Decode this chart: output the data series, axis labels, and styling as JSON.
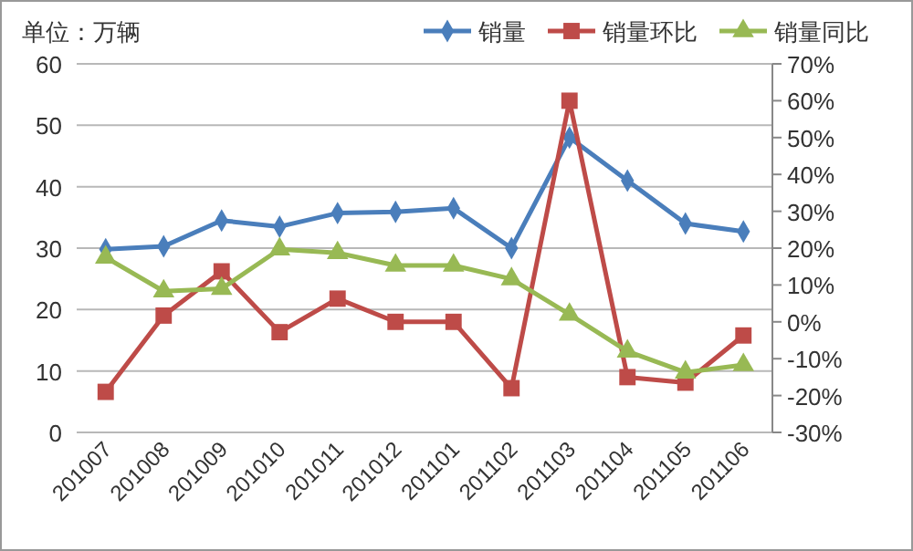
{
  "chart_data": {
    "type": "line",
    "ylabel": "单位：万辆",
    "categories": [
      "201007",
      "201008",
      "201009",
      "201010",
      "201011",
      "201012",
      "201101",
      "201102",
      "201103",
      "201104",
      "201105",
      "201106"
    ],
    "series": [
      {
        "name": "销量",
        "color": "#4a7ebb",
        "marker": "diamond",
        "values": [
          29.8,
          30.3,
          34.5,
          33.5,
          35.7,
          35.9,
          36.5,
          30,
          48,
          41,
          34,
          32.7
        ]
      },
      {
        "name": "销量环比",
        "color": "#be4b48",
        "marker": "square",
        "axis": "y2",
        "values": [
          -19,
          1.7,
          13.7,
          -2.8,
          6.3,
          0,
          0,
          -18,
          60,
          -15,
          -16.5,
          -3.7
        ]
      },
      {
        "name": "销量同比",
        "color": "#98b954",
        "marker": "triangle",
        "axis": "y2",
        "values": [
          17.5,
          8.3,
          9,
          19.7,
          18.7,
          15.3,
          15.3,
          11.6,
          2,
          -8,
          -13.7,
          -11.7
        ]
      }
    ],
    "ylim": [
      0,
      60
    ],
    "yticks": [
      0,
      10,
      20,
      30,
      40,
      50,
      60
    ],
    "y2lim": [
      -30,
      70
    ],
    "y2ticks": [
      {
        "value": -30,
        "label": "-30%"
      },
      {
        "value": -20,
        "label": "-20%"
      },
      {
        "value": -10,
        "label": "-10%"
      },
      {
        "value": 0,
        "label": "0%"
      },
      {
        "value": 10,
        "label": "10%"
      },
      {
        "value": 20,
        "label": "20%"
      },
      {
        "value": 30,
        "label": "30%"
      },
      {
        "value": 40,
        "label": "40%"
      },
      {
        "value": 50,
        "label": "50%"
      },
      {
        "value": 60,
        "label": "60%"
      },
      {
        "value": 70,
        "label": "70%"
      }
    ],
    "grid": "y",
    "legend": "top right"
  }
}
